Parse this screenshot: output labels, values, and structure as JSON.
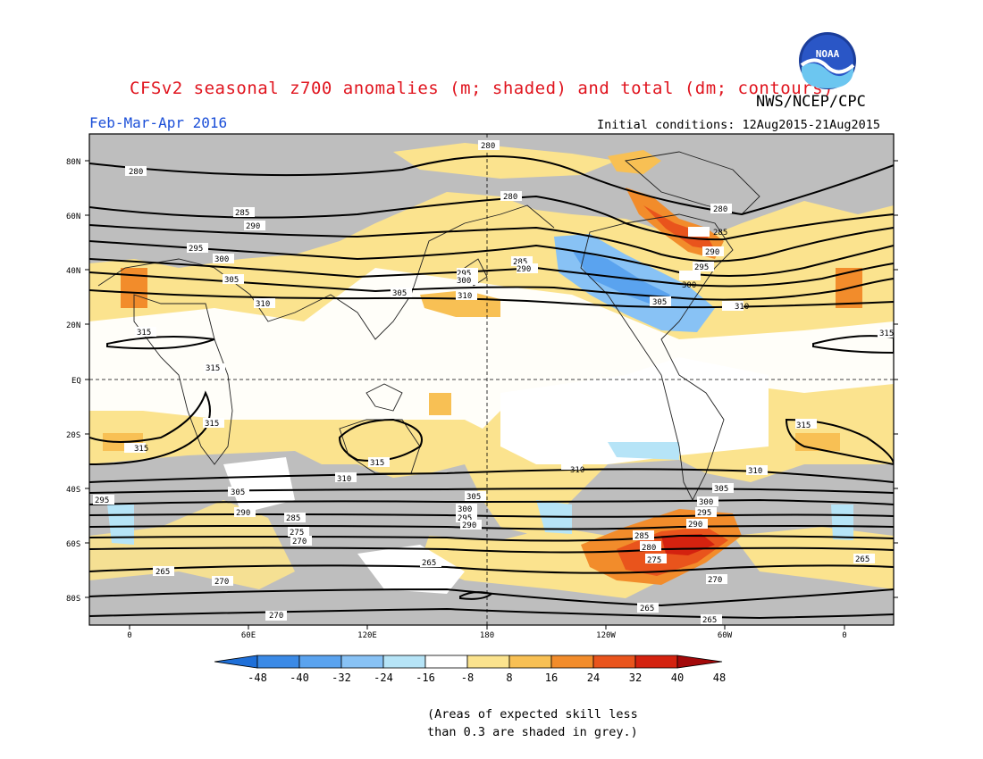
{
  "header": {
    "title": "CFSv2 seasonal z700 anomalies (m; shaded) and total (dm; contours)",
    "agency": "NWS/NCEP/CPC",
    "season": "Feb-Mar-Apr 2016",
    "initial_conditions": "Initial conditions: 12Aug2015-21Aug2015",
    "logo_text": "NOAA"
  },
  "map": {
    "lat_labels": [
      "80N",
      "60N",
      "40N",
      "20N",
      "EQ",
      "20S",
      "40S",
      "60S",
      "80S"
    ],
    "lon_labels": [
      "0",
      "60E",
      "120E",
      "180",
      "120W",
      "60W",
      "0"
    ],
    "contour_labels": [
      "280",
      "285",
      "290",
      "295",
      "300",
      "305",
      "310",
      "315",
      "265",
      "270",
      "275"
    ]
  },
  "colorbar": {
    "ticks": [
      "-48",
      "-40",
      "-32",
      "-24",
      "-16",
      "-8",
      "8",
      "16",
      "24",
      "32",
      "40",
      "48"
    ],
    "colors": [
      "#1e6fd8",
      "#3b8ae6",
      "#5aa3ef",
      "#88c2f5",
      "#b6e4f7",
      "#ffffff",
      "#fbe38e",
      "#f8c054",
      "#f28c2b",
      "#e9541c",
      "#d4220f",
      "#a3090a"
    ]
  },
  "footer": {
    "note_line1": "(Areas of expected skill less",
    "note_line2": "than 0.3 are shaded in grey.)"
  }
}
